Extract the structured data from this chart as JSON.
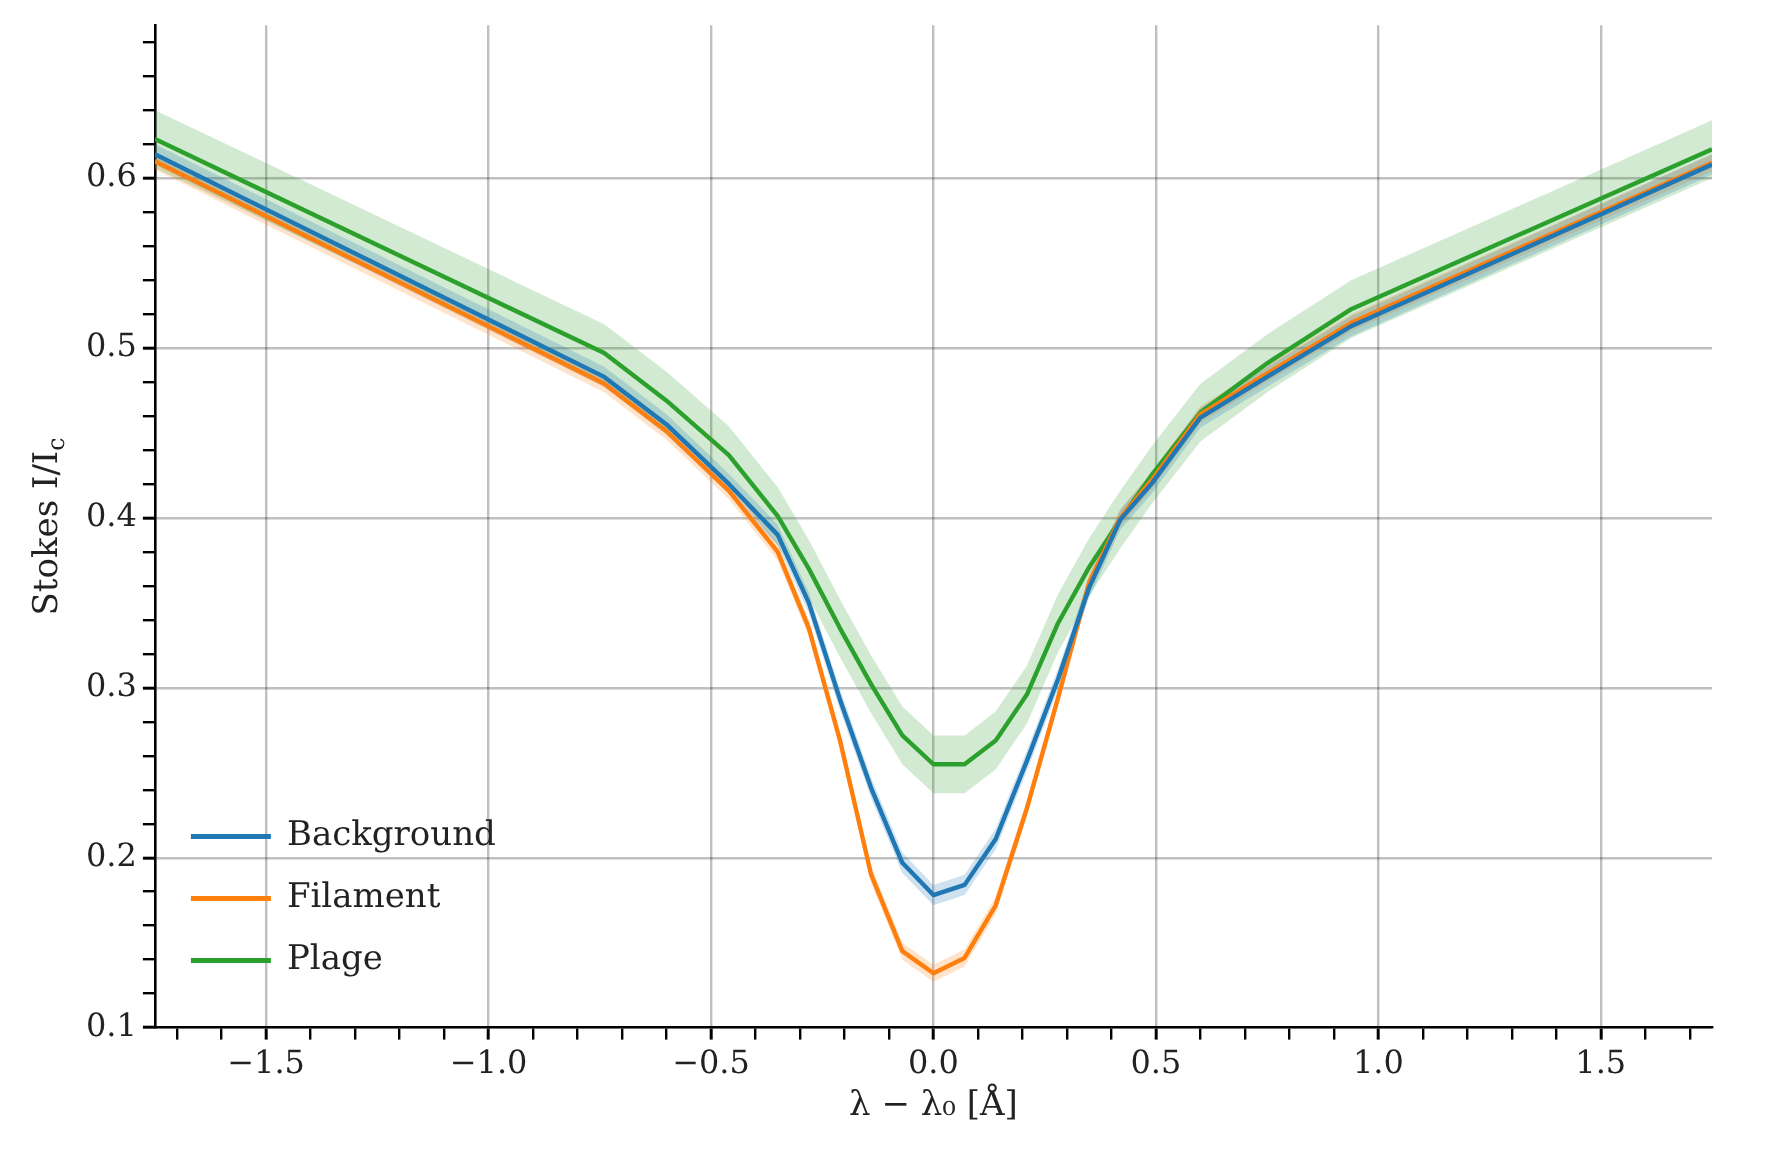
{
  "chart_data": {
    "type": "line",
    "xlabel": "λ − λ₀ [Å]",
    "ylabel": "Stokes I/I$_{c}$",
    "x": [
      -1.75,
      -0.74,
      -0.6,
      -0.46,
      -0.35,
      -0.28,
      -0.21,
      -0.14,
      -0.07,
      0,
      0.07,
      0.14,
      0.21,
      0.28,
      0.35,
      0.42,
      0.49,
      0.6,
      0.75,
      0.94,
      1.75
    ],
    "series": [
      {
        "name": "Background",
        "color": "#1f77b4",
        "values": [
          0.614,
          0.483,
          0.455,
          0.42,
          0.39,
          0.35,
          0.293,
          0.241,
          0.197,
          0.178,
          0.184,
          0.211,
          0.257,
          0.305,
          0.359,
          0.399,
          0.42,
          0.459,
          0.483,
          0.513,
          0.608
        ],
        "lower": [
          0.608,
          0.477,
          0.449,
          0.414,
          0.384,
          0.344,
          0.287,
          0.235,
          0.191,
          0.172,
          0.178,
          0.205,
          0.251,
          0.299,
          0.353,
          0.393,
          0.414,
          0.453,
          0.477,
          0.507,
          0.602
        ],
        "upper": [
          0.62,
          0.489,
          0.461,
          0.426,
          0.396,
          0.356,
          0.299,
          0.247,
          0.203,
          0.184,
          0.19,
          0.217,
          0.263,
          0.311,
          0.365,
          0.405,
          0.426,
          0.465,
          0.489,
          0.519,
          0.614
        ]
      },
      {
        "name": "Filament",
        "color": "#ff7f0e",
        "values": [
          0.61,
          0.479,
          0.451,
          0.416,
          0.38,
          0.335,
          0.269,
          0.19,
          0.145,
          0.132,
          0.141,
          0.172,
          0.229,
          0.294,
          0.362,
          0.4,
          0.422,
          0.461,
          0.485,
          0.515,
          0.609
        ],
        "lower": [
          0.605,
          0.474,
          0.446,
          0.411,
          0.375,
          0.33,
          0.264,
          0.185,
          0.14,
          0.127,
          0.136,
          0.167,
          0.224,
          0.289,
          0.357,
          0.395,
          0.417,
          0.456,
          0.48,
          0.51,
          0.604
        ],
        "upper": [
          0.615,
          0.484,
          0.456,
          0.421,
          0.385,
          0.34,
          0.274,
          0.195,
          0.15,
          0.137,
          0.146,
          0.177,
          0.234,
          0.299,
          0.367,
          0.405,
          0.427,
          0.466,
          0.49,
          0.52,
          0.614
        ]
      },
      {
        "name": "Plage",
        "color": "#2ca02c",
        "values": [
          0.623,
          0.497,
          0.469,
          0.437,
          0.401,
          0.37,
          0.335,
          0.302,
          0.272,
          0.255,
          0.255,
          0.269,
          0.296,
          0.338,
          0.371,
          0.399,
          0.425,
          0.462,
          0.491,
          0.523,
          0.617
        ],
        "lower": [
          0.606,
          0.48,
          0.452,
          0.42,
          0.384,
          0.353,
          0.318,
          0.285,
          0.255,
          0.238,
          0.238,
          0.252,
          0.279,
          0.321,
          0.354,
          0.382,
          0.408,
          0.445,
          0.474,
          0.506,
          0.6
        ],
        "upper": [
          0.64,
          0.514,
          0.486,
          0.454,
          0.418,
          0.387,
          0.352,
          0.319,
          0.289,
          0.272,
          0.272,
          0.286,
          0.313,
          0.355,
          0.388,
          0.416,
          0.442,
          0.479,
          0.508,
          0.54,
          0.634
        ]
      }
    ],
    "xlim": [
      -1.75,
      1.75
    ],
    "xticks": [
      {
        "value": -1.7,
        "label": null
      },
      {
        "value": -1.6,
        "label": null
      },
      {
        "value": -1.5,
        "label": "−1.5"
      },
      {
        "value": -1.4,
        "label": null
      },
      {
        "value": -1.3,
        "label": null
      },
      {
        "value": -1.2,
        "label": null
      },
      {
        "value": -1.1,
        "label": null
      },
      {
        "value": -1.0,
        "label": "−1.0"
      },
      {
        "value": -0.9,
        "label": null
      },
      {
        "value": -0.8,
        "label": null
      },
      {
        "value": -0.7,
        "label": null
      },
      {
        "value": -0.6,
        "label": null
      },
      {
        "value": -0.5,
        "label": "−0.5"
      },
      {
        "value": -0.4,
        "label": null
      },
      {
        "value": -0.3,
        "label": null
      },
      {
        "value": -0.2,
        "label": null
      },
      {
        "value": -0.1,
        "label": null
      },
      {
        "value": 0,
        "label": "0.0"
      },
      {
        "value": 0.1,
        "label": null
      },
      {
        "value": 0.2,
        "label": null
      },
      {
        "value": 0.3,
        "label": null
      },
      {
        "value": 0.4,
        "label": null
      },
      {
        "value": 0.5,
        "label": "0.5"
      },
      {
        "value": 0.6,
        "label": null
      },
      {
        "value": 0.7,
        "label": null
      },
      {
        "value": 0.8,
        "label": null
      },
      {
        "value": 0.9,
        "label": null
      },
      {
        "value": 1.0,
        "label": "1.0"
      },
      {
        "value": 1.1,
        "label": null
      },
      {
        "value": 1.2,
        "label": null
      },
      {
        "value": 1.3,
        "label": null
      },
      {
        "value": 1.4,
        "label": null
      },
      {
        "value": 1.5,
        "label": "1.5"
      },
      {
        "value": 1.6,
        "label": null
      },
      {
        "value": 1.7,
        "label": null
      }
    ],
    "ylim": [
      0.1,
      0.69
    ],
    "yticks": [
      0.1,
      {
        "value": 0.12,
        "label": null
      },
      {
        "value": 0.14,
        "label": null
      },
      {
        "value": 0.16,
        "label": null
      },
      {
        "value": 0.18,
        "label": null
      },
      0.2,
      {
        "value": 0.22,
        "label": null
      },
      {
        "value": 0.24,
        "label": null
      },
      {
        "value": 0.26,
        "label": null
      },
      {
        "value": 0.28,
        "label": null
      },
      0.3,
      {
        "value": 0.32,
        "label": null
      },
      {
        "value": 0.34,
        "label": null
      },
      {
        "value": 0.36,
        "label": null
      },
      {
        "value": 0.38,
        "label": null
      },
      0.4,
      {
        "value": 0.42,
        "label": null
      },
      {
        "value": 0.44,
        "label": null
      },
      {
        "value": 0.46,
        "label": null
      },
      {
        "value": 0.48,
        "label": null
      },
      0.5,
      {
        "value": 0.52,
        "label": null
      },
      {
        "value": 0.54,
        "label": null
      },
      {
        "value": 0.56,
        "label": null
      },
      {
        "value": 0.58,
        "label": null
      },
      0.6,
      {
        "value": 0.62,
        "label": null
      },
      {
        "value": 0.64,
        "label": null
      },
      {
        "value": 0.66,
        "label": null
      },
      {
        "value": 0.68,
        "label": null
      }
    ],
    "grid": true,
    "legend": "bottom left",
    "marker": "none",
    "line_style": "solid"
  }
}
